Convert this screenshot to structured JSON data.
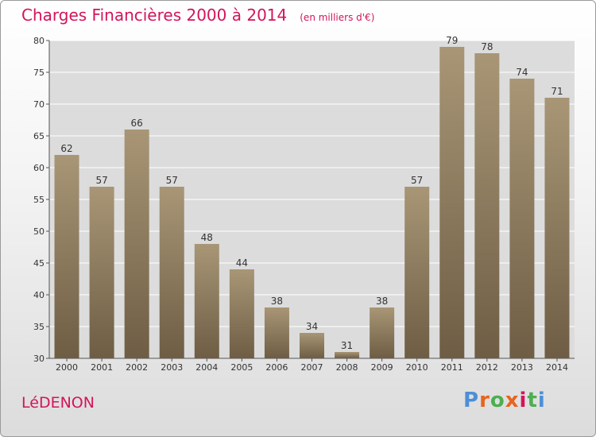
{
  "header": {
    "title": "Charges Financières 2000 à 2014",
    "unit": "(en milliers d'€)"
  },
  "footer": {
    "commune": "LéDENON",
    "logo": "Proxiti",
    "logo_colors": [
      "#4c8fd6",
      "#e8641e",
      "#4caf50",
      "#e8641e",
      "#d4145a",
      "#4caf50",
      "#4c8fd6"
    ]
  },
  "chart_data": {
    "type": "bar",
    "categories": [
      "2000",
      "2001",
      "2002",
      "2003",
      "2004",
      "2005",
      "2006",
      "2007",
      "2008",
      "2009",
      "2010",
      "2011",
      "2012",
      "2013",
      "2014"
    ],
    "values": [
      62,
      57,
      66,
      57,
      48,
      44,
      38,
      34,
      31,
      38,
      57,
      79,
      78,
      74,
      71
    ],
    "ylim": [
      30,
      80
    ],
    "yticks": [
      30,
      35,
      40,
      45,
      50,
      55,
      60,
      65,
      70,
      75,
      80
    ],
    "grid": true,
    "bar_color": "#8a7658",
    "bar_color_light": "#a89676",
    "bar_color_dark": "#6e5d44"
  }
}
